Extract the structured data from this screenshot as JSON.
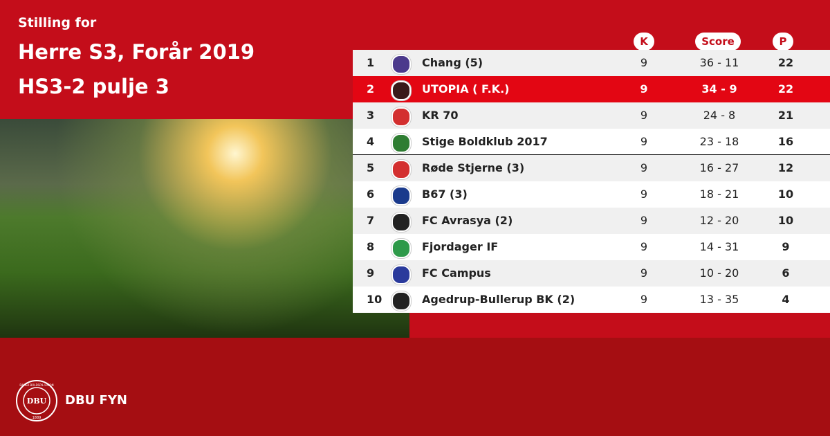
{
  "header": {
    "kicker": "Stilling for",
    "title_lines": [
      "Herre S3, Forår 2019",
      "HS3-2 pulje 3"
    ]
  },
  "table": {
    "columns": [
      "K",
      "Score",
      "P"
    ],
    "rows": [
      [
        1,
        "Chang (5)",
        9,
        "36 - 11",
        22
      ],
      [
        2,
        "UTOPIA  ( F.K.)",
        9,
        "34 - 9",
        22
      ],
      [
        3,
        "KR 70",
        9,
        "24 - 8",
        21
      ],
      [
        4,
        "Stige Boldklub 2017",
        9,
        "23 - 18",
        16
      ],
      [
        5,
        "Røde Stjerne (3)",
        9,
        "16 - 27",
        12
      ],
      [
        6,
        "B67 (3)",
        9,
        "18 - 21",
        10
      ],
      [
        7,
        "FC Avrasya (2)",
        9,
        "12 - 20",
        10
      ],
      [
        8,
        "Fjordager IF",
        9,
        "14 - 31",
        9
      ],
      [
        9,
        "FC Campus",
        9,
        "10 - 20",
        6
      ],
      [
        10,
        "Agedrup-Bullerup BK (2)",
        9,
        "13 - 35",
        4
      ]
    ]
  },
  "footer": {
    "logo_text": "DBU",
    "logo_ring": "DANSK BOLDSPIL-UNION",
    "logo_year": "1889",
    "brand": "DBU FYN"
  }
}
